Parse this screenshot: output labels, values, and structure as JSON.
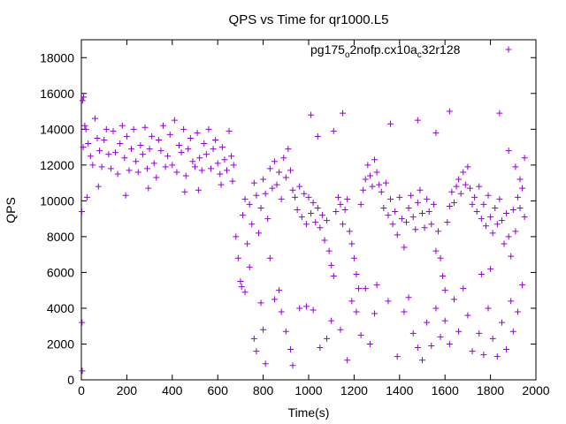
{
  "chart_data": {
    "type": "scatter",
    "title": "QPS vs Time for qr1000.L5",
    "xlabel": "Time(s)",
    "ylabel": "QPS",
    "xlim": [
      0,
      2000
    ],
    "ylim": [
      0,
      19000
    ],
    "xticks": [
      0,
      200,
      400,
      600,
      800,
      1000,
      1200,
      1400,
      1600,
      1800,
      2000
    ],
    "xtick_labels": [
      "0",
      "200",
      "400",
      "600",
      "800",
      "1000",
      "1200",
      "1400",
      "1600",
      "1800",
      "2000"
    ],
    "yticks": [
      0,
      2000,
      4000,
      6000,
      8000,
      10000,
      12000,
      14000,
      16000,
      18000
    ],
    "ytick_labels": [
      "0",
      "2000",
      "4000",
      "6000",
      "8000",
      "10000",
      "12000",
      "14000",
      "16000",
      "18000"
    ],
    "grid": false,
    "legend_position": "top-right",
    "marker": "+",
    "series": [
      {
        "name": "pg175_o2nofp.cx10a_c32r128",
        "legend_parts": [
          {
            "text": "pg175",
            "sub": false
          },
          {
            "text": "o",
            "sub": true
          },
          {
            "text": "2nofp.cx10a",
            "sub": false
          },
          {
            "text": "c",
            "sub": true
          },
          {
            "text": "32r128",
            "sub": false
          }
        ],
        "color": "#9400d3",
        "points": [
          [
            5,
            15600
          ],
          [
            10,
            15800
          ],
          [
            15,
            14200
          ],
          [
            8,
            13000
          ],
          [
            3,
            3200
          ],
          [
            2,
            9400
          ],
          [
            4,
            500
          ],
          [
            20,
            14000
          ],
          [
            30,
            13200
          ],
          [
            40,
            12500
          ],
          [
            50,
            12000
          ],
          [
            60,
            14600
          ],
          [
            70,
            13500
          ],
          [
            80,
            12800
          ],
          [
            90,
            11900
          ],
          [
            100,
            13400
          ],
          [
            110,
            14000
          ],
          [
            120,
            12600
          ],
          [
            130,
            11800
          ],
          [
            140,
            13900
          ],
          [
            150,
            12700
          ],
          [
            160,
            11500
          ],
          [
            170,
            13200
          ],
          [
            180,
            14200
          ],
          [
            190,
            12400
          ],
          [
            200,
            13600
          ],
          [
            210,
            11700
          ],
          [
            220,
            12900
          ],
          [
            230,
            14000
          ],
          [
            240,
            12200
          ],
          [
            250,
            11600
          ],
          [
            260,
            13100
          ],
          [
            270,
            12600
          ],
          [
            280,
            14100
          ],
          [
            290,
            11800
          ],
          [
            300,
            12900
          ],
          [
            310,
            13600
          ],
          [
            320,
            12100
          ],
          [
            330,
            11300
          ],
          [
            340,
            13400
          ],
          [
            350,
            12800
          ],
          [
            360,
            14200
          ],
          [
            370,
            11900
          ],
          [
            380,
            12500
          ],
          [
            390,
            13700
          ],
          [
            400,
            12000
          ],
          [
            410,
            14500
          ],
          [
            420,
            11600
          ],
          [
            430,
            13100
          ],
          [
            440,
            12700
          ],
          [
            450,
            14000
          ],
          [
            460,
            11400
          ],
          [
            470,
            12900
          ],
          [
            480,
            13500
          ],
          [
            490,
            12200
          ],
          [
            500,
            11900
          ],
          [
            510,
            13800
          ],
          [
            520,
            12400
          ],
          [
            530,
            11700
          ],
          [
            540,
            13200
          ],
          [
            550,
            12600
          ],
          [
            560,
            14000
          ],
          [
            570,
            11800
          ],
          [
            580,
            12900
          ],
          [
            590,
            13400
          ],
          [
            600,
            12100
          ],
          [
            610,
            11500
          ],
          [
            620,
            13000
          ],
          [
            630,
            12300
          ],
          [
            640,
            11700
          ],
          [
            650,
            13900
          ],
          [
            660,
            12500
          ],
          [
            670,
            12000
          ],
          [
            25,
            10200
          ],
          [
            75,
            10800
          ],
          [
            195,
            10300
          ],
          [
            295,
            10700
          ],
          [
            455,
            10500
          ],
          [
            515,
            10600
          ],
          [
            615,
            10900
          ],
          [
            665,
            11100
          ],
          [
            680,
            8000
          ],
          [
            690,
            6800
          ],
          [
            700,
            5500
          ],
          [
            710,
            9200
          ],
          [
            720,
            10100
          ],
          [
            730,
            7600
          ],
          [
            740,
            9800
          ],
          [
            750,
            8700
          ],
          [
            760,
            11000
          ],
          [
            770,
            10300
          ],
          [
            780,
            8200
          ],
          [
            790,
            9600
          ],
          [
            800,
            11200
          ],
          [
            810,
            10400
          ],
          [
            820,
            9000
          ],
          [
            830,
            11800
          ],
          [
            840,
            10700
          ],
          [
            850,
            12200
          ],
          [
            860,
            10900
          ],
          [
            870,
            11600
          ],
          [
            880,
            10100
          ],
          [
            890,
            12400
          ],
          [
            900,
            11300
          ],
          [
            910,
            12900
          ],
          [
            920,
            11700
          ],
          [
            930,
            10600
          ],
          [
            705,
            5200
          ],
          [
            720,
            4900
          ],
          [
            760,
            2300
          ],
          [
            770,
            1600
          ],
          [
            790,
            4300
          ],
          [
            800,
            2800
          ],
          [
            810,
            900
          ],
          [
            850,
            4500
          ],
          [
            880,
            3800
          ],
          [
            900,
            2700
          ],
          [
            920,
            1700
          ],
          [
            930,
            800
          ],
          [
            870,
            5000
          ],
          [
            830,
            6800
          ],
          [
            740,
            6300
          ],
          [
            940,
            10200
          ],
          [
            950,
            9500
          ],
          [
            960,
            10800
          ],
          [
            970,
            9100
          ],
          [
            980,
            10400
          ],
          [
            990,
            8700
          ],
          [
            1000,
            10200
          ],
          [
            1010,
            9300
          ],
          [
            1020,
            9900
          ],
          [
            1030,
            8800
          ],
          [
            1040,
            9600
          ],
          [
            1050,
            8500
          ],
          [
            1060,
            9200
          ],
          [
            1070,
            7800
          ],
          [
            1080,
            8900
          ],
          [
            1090,
            7200
          ],
          [
            1100,
            6400
          ],
          [
            1110,
            5800
          ],
          [
            1120,
            9400
          ],
          [
            1130,
            10200
          ],
          [
            1140,
            9800
          ],
          [
            1150,
            8700
          ],
          [
            1160,
            9500
          ],
          [
            1170,
            10100
          ],
          [
            1180,
            8300
          ],
          [
            1190,
            7600
          ],
          [
            1200,
            6800
          ],
          [
            1210,
            5900
          ],
          [
            1220,
            5100
          ],
          [
            1230,
            9800
          ],
          [
            1240,
            10600
          ],
          [
            1250,
            11200
          ],
          [
            1260,
            12000
          ],
          [
            1270,
            11400
          ],
          [
            1280,
            10800
          ],
          [
            1290,
            12300
          ],
          [
            1300,
            11600
          ],
          [
            1310,
            10900
          ],
          [
            960,
            4000
          ],
          [
            990,
            4100
          ],
          [
            1020,
            3900
          ],
          [
            1050,
            1800
          ],
          [
            1080,
            2300
          ],
          [
            1100,
            3300
          ],
          [
            1140,
            2800
          ],
          [
            1170,
            1100
          ],
          [
            1190,
            4400
          ],
          [
            1210,
            3800
          ],
          [
            1230,
            2500
          ],
          [
            1250,
            5100
          ],
          [
            1270,
            2000
          ],
          [
            1290,
            3700
          ],
          [
            1300,
            5300
          ],
          [
            1010,
            14800
          ],
          [
            1040,
            13600
          ],
          [
            1110,
            13900
          ],
          [
            1150,
            14900
          ],
          [
            1320,
            10500
          ],
          [
            1330,
            9600
          ],
          [
            1340,
            11000
          ],
          [
            1350,
            9200
          ],
          [
            1360,
            10100
          ],
          [
            1370,
            8700
          ],
          [
            1380,
            9400
          ],
          [
            1390,
            8100
          ],
          [
            1400,
            10200
          ],
          [
            1410,
            9000
          ],
          [
            1420,
            7400
          ],
          [
            1430,
            8800
          ],
          [
            1440,
            9600
          ],
          [
            1450,
            10300
          ],
          [
            1460,
            9100
          ],
          [
            1470,
            8400
          ],
          [
            1480,
            9900
          ],
          [
            1490,
            10600
          ],
          [
            1500,
            9300
          ],
          [
            1510,
            8500
          ],
          [
            1520,
            10100
          ],
          [
            1530,
            9400
          ],
          [
            1540,
            8700
          ],
          [
            1550,
            9800
          ],
          [
            1560,
            7200
          ],
          [
            1570,
            8300
          ],
          [
            1580,
            6800
          ],
          [
            1590,
            5800
          ],
          [
            1600,
            5000
          ],
          [
            1610,
            8800
          ],
          [
            1620,
            9700
          ],
          [
            1630,
            10500
          ],
          [
            1640,
            9900
          ],
          [
            1650,
            10800
          ],
          [
            1660,
            11200
          ],
          [
            1670,
            10400
          ],
          [
            1680,
            11600
          ],
          [
            1690,
            10900
          ],
          [
            1700,
            11900
          ],
          [
            1710,
            10700
          ],
          [
            1720,
            9800
          ],
          [
            1350,
            4400
          ],
          [
            1390,
            1300
          ],
          [
            1420,
            3800
          ],
          [
            1440,
            4600
          ],
          [
            1460,
            2600
          ],
          [
            1480,
            1800
          ],
          [
            1500,
            1100
          ],
          [
            1520,
            3200
          ],
          [
            1540,
            1900
          ],
          [
            1560,
            4000
          ],
          [
            1580,
            2400
          ],
          [
            1600,
            3300
          ],
          [
            1620,
            2000
          ],
          [
            1640,
            4500
          ],
          [
            1660,
            2700
          ],
          [
            1680,
            5100
          ],
          [
            1700,
            3600
          ],
          [
            1720,
            1600
          ],
          [
            1360,
            14300
          ],
          [
            1480,
            14500
          ],
          [
            1560,
            13800
          ],
          [
            1620,
            15000
          ],
          [
            1730,
            10200
          ],
          [
            1740,
            9400
          ],
          [
            1750,
            10800
          ],
          [
            1760,
            9000
          ],
          [
            1770,
            9800
          ],
          [
            1780,
            8600
          ],
          [
            1790,
            10300
          ],
          [
            1800,
            9100
          ],
          [
            1810,
            8200
          ],
          [
            1820,
            9600
          ],
          [
            1830,
            8700
          ],
          [
            1840,
            10100
          ],
          [
            1850,
            8900
          ],
          [
            1860,
            7600
          ],
          [
            1870,
            9300
          ],
          [
            1880,
            8000
          ],
          [
            1890,
            6900
          ],
          [
            1900,
            9500
          ],
          [
            1910,
            8300
          ],
          [
            1920,
            10200
          ],
          [
            1930,
            9600
          ],
          [
            1940,
            10700
          ],
          [
            1950,
            9100
          ],
          [
            1750,
            2600
          ],
          [
            1770,
            1400
          ],
          [
            1790,
            4000
          ],
          [
            1810,
            2300
          ],
          [
            1830,
            1300
          ],
          [
            1850,
            3200
          ],
          [
            1870,
            1700
          ],
          [
            1890,
            4400
          ],
          [
            1900,
            2700
          ],
          [
            1920,
            3800
          ],
          [
            1940,
            5300
          ],
          [
            1760,
            5900
          ],
          [
            1800,
            6200
          ],
          [
            1840,
            14900
          ],
          [
            1880,
            12800
          ],
          [
            1910,
            11900
          ],
          [
            1930,
            11200
          ],
          [
            1950,
            12400
          ]
        ]
      }
    ]
  }
}
